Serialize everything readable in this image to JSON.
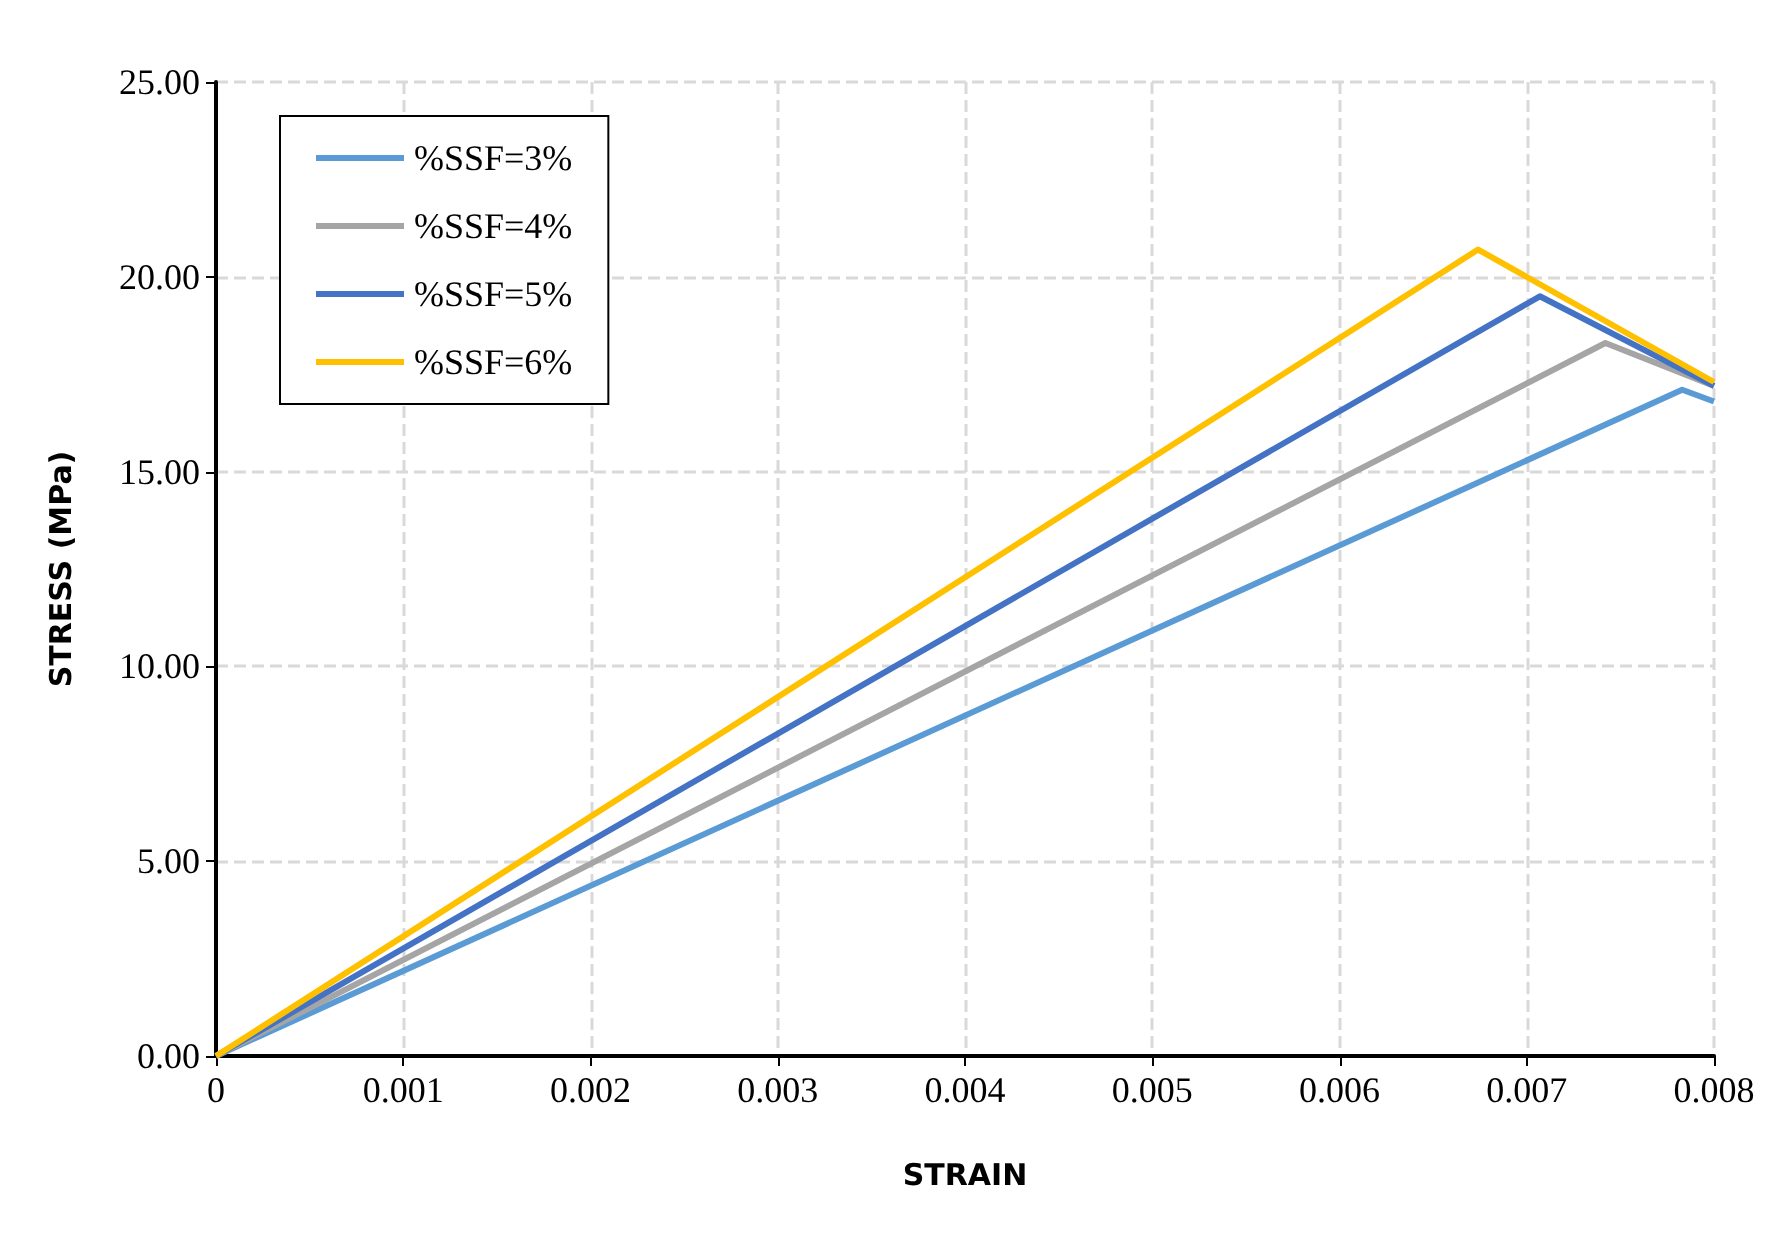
{
  "chart_data": {
    "type": "line",
    "xlabel": "STRAIN",
    "ylabel": "STRESS (MPa)",
    "xlim": [
      0,
      0.008
    ],
    "xticks": [
      {
        "value": 0,
        "label": "0"
      },
      0.001,
      0.002,
      0.003,
      0.004,
      0.005,
      0.006,
      0.007,
      0.008
    ],
    "ylim": [
      0,
      25
    ],
    "yticks": [
      {
        "value": 0,
        "label": "0.00"
      },
      {
        "value": 5,
        "label": "5.00"
      },
      {
        "value": 10,
        "label": "10.00"
      },
      {
        "value": 15,
        "label": "15.00"
      },
      {
        "value": 20,
        "label": "20.00"
      },
      {
        "value": 25,
        "label": "25.00"
      }
    ],
    "grid": true,
    "legend": "top left",
    "marker": "none",
    "line_style": "solid",
    "series": [
      {
        "name": "%SSF=3%",
        "color": "#5b9bd5",
        "x": [
          0,
          0.00783,
          0.008
        ],
        "values": [
          0,
          17.1,
          16.8
        ]
      },
      {
        "name": "%SSF=4%",
        "color": "#a5a5a5",
        "x": [
          0,
          0.00742,
          0.008
        ],
        "values": [
          0,
          18.3,
          17.2
        ]
      },
      {
        "name": "%SSF=5%",
        "color": "#4472c4",
        "x": [
          0,
          0.00707,
          0.008
        ],
        "values": [
          0,
          19.5,
          17.2
        ]
      },
      {
        "name": "%SSF=6%",
        "color": "#ffc000",
        "x": [
          0,
          0.00674,
          0.008
        ],
        "values": [
          0,
          20.7,
          17.3
        ]
      }
    ]
  }
}
